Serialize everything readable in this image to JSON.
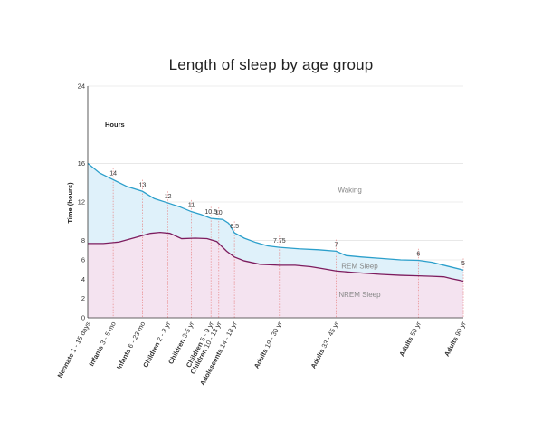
{
  "chart_data": {
    "type": "area",
    "title": "Length of sleep by age group",
    "ylabel": "Time (hours)",
    "ylim": [
      0,
      24
    ],
    "yticks": [
      0,
      2,
      4,
      6,
      8,
      12,
      16,
      24
    ],
    "y_unit_label": "Hours",
    "grid": true,
    "x": [
      0,
      0.65,
      1.4,
      2.05,
      2.65,
      3.15,
      3.35,
      3.75,
      4.9,
      6.35,
      8.45,
      9.6
    ],
    "categories": [
      {
        "bold": "Neonate",
        "rest": " 1 - 15 days"
      },
      {
        "bold": "Infants",
        "rest": " 3 - 5 mo"
      },
      {
        "bold": "Infants",
        "rest": " 6 - 23 mo"
      },
      {
        "bold": "Children",
        "rest": " 2 - 3 yr"
      },
      {
        "bold": "Children",
        "rest": " 3-5 yr"
      },
      {
        "bold": "Children",
        "rest": " 5 - 9 yr"
      },
      {
        "bold": "Children",
        "rest": " 10 - 13 yr"
      },
      {
        "bold": "Adolescents",
        "rest": " 14 - 18 yr"
      },
      {
        "bold": "Adults",
        "rest": " 19 - 30 yr"
      },
      {
        "bold": "Adults",
        "rest": " 33 - 45 yr"
      },
      {
        "bold": "Adults",
        "rest": " 50 yr"
      },
      {
        "bold": "Adults",
        "rest": " 90 yr"
      }
    ],
    "value_labels": [
      "",
      "14",
      "13",
      "12",
      "11",
      "10.5",
      "10",
      "8.5",
      "7.75",
      "7",
      "6",
      "5"
    ],
    "total_curve": {
      "x": [
        0,
        0.3,
        0.65,
        1.0,
        1.4,
        1.7,
        2.05,
        2.35,
        2.65,
        2.9,
        3.15,
        3.3,
        3.45,
        3.6,
        3.75,
        4.0,
        4.3,
        4.6,
        4.9,
        5.4,
        5.9,
        6.35,
        6.6,
        7.0,
        7.5,
        8.0,
        8.45,
        8.8,
        9.2,
        9.6
      ],
      "y": [
        16.0,
        15.0,
        14.3,
        13.6,
        13.1,
        12.35,
        11.9,
        11.5,
        11.0,
        10.7,
        10.3,
        10.25,
        10.2,
        9.8,
        8.8,
        8.25,
        7.8,
        7.45,
        7.3,
        7.15,
        7.05,
        6.9,
        6.45,
        6.3,
        6.15,
        6.0,
        5.95,
        5.75,
        5.35,
        4.95
      ]
    },
    "nrem_curve": {
      "x": [
        0,
        0.4,
        0.8,
        1.2,
        1.6,
        1.85,
        2.1,
        2.4,
        2.75,
        3.05,
        3.3,
        3.55,
        3.75,
        4.0,
        4.4,
        4.9,
        5.3,
        5.7,
        6.0,
        6.35,
        6.8,
        7.5,
        8.0,
        8.45,
        8.8,
        9.1,
        9.3,
        9.6
      ],
      "y": [
        7.7,
        7.7,
        7.85,
        8.3,
        8.75,
        8.85,
        8.75,
        8.2,
        8.25,
        8.2,
        7.9,
        6.9,
        6.3,
        5.9,
        5.55,
        5.45,
        5.45,
        5.3,
        5.1,
        4.85,
        4.7,
        4.5,
        4.4,
        4.35,
        4.3,
        4.25,
        4.05,
        3.8
      ]
    },
    "regions": [
      {
        "name": "Waking",
        "at": [
          6.7,
          13
        ],
        "color": "#ffffff"
      },
      {
        "name": "REM Sleep",
        "at": [
          6.95,
          5.1
        ],
        "color": "#dff1fa"
      },
      {
        "name": "NREM Sleep",
        "at": [
          6.95,
          2.15
        ],
        "color": "#f3e1ef"
      }
    ],
    "colors": {
      "total_line": "#2b9fcb",
      "nrem_line": "#7d1c5e",
      "rem_fill": "#dff1fa",
      "nrem_fill": "#f4e3f0",
      "grid": "#d9d9d9",
      "dashed": "#e77a7a"
    }
  }
}
